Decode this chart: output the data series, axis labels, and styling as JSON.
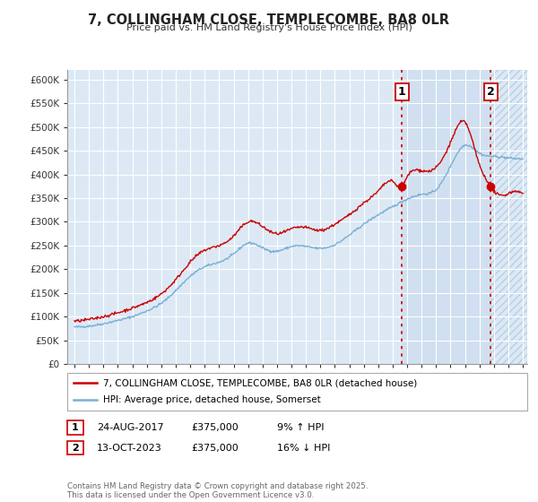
{
  "title": "7, COLLINGHAM CLOSE, TEMPLECOMBE, BA8 0LR",
  "subtitle": "Price paid vs. HM Land Registry's House Price Index (HPI)",
  "ylabel_ticks": [
    "£0",
    "£50K",
    "£100K",
    "£150K",
    "£200K",
    "£250K",
    "£300K",
    "£350K",
    "£400K",
    "£450K",
    "£500K",
    "£550K",
    "£600K"
  ],
  "ytick_values": [
    0,
    50000,
    100000,
    150000,
    200000,
    250000,
    300000,
    350000,
    400000,
    450000,
    500000,
    550000,
    600000
  ],
  "ylim": [
    0,
    620000
  ],
  "xlim_start": 1994.5,
  "xlim_end": 2026.3,
  "bg_color": "#dce9f5",
  "line_color_red": "#cc0000",
  "line_color_blue": "#7ab0d4",
  "grid_color": "#ffffff",
  "sale1_x": 2017.645,
  "sale1_y": 375000,
  "sale1_label": "1",
  "sale2_x": 2023.787,
  "sale2_y": 375000,
  "sale2_label": "2",
  "vline_color": "#cc0000",
  "legend_line1": "7, COLLINGHAM CLOSE, TEMPLECOMBE, BA8 0LR (detached house)",
  "legend_line2": "HPI: Average price, detached house, Somerset",
  "annotation1_date": "24-AUG-2017",
  "annotation1_price": "£375,000",
  "annotation1_hpi": "9% ↑ HPI",
  "annotation2_date": "13-OCT-2023",
  "annotation2_price": "£375,000",
  "annotation2_hpi": "16% ↓ HPI",
  "footer": "Contains HM Land Registry data © Crown copyright and database right 2025.\nThis data is licensed under the Open Government Licence v3.0.",
  "hpi_pts_x": [
    1995,
    1996,
    1997,
    1998,
    1999,
    2000,
    2001,
    2002,
    2003,
    2004,
    2005,
    2006,
    2007,
    2008,
    2009,
    2010,
    2011,
    2012,
    2013,
    2014,
    2015,
    2016,
    2017,
    2018,
    2019,
    2020,
    2021,
    2022,
    2023,
    2024,
    2025,
    2026
  ],
  "hpi_pts_y": [
    78000,
    80000,
    85000,
    92000,
    100000,
    112000,
    128000,
    155000,
    185000,
    205000,
    215000,
    232000,
    255000,
    245000,
    238000,
    248000,
    248000,
    244000,
    252000,
    272000,
    295000,
    315000,
    332000,
    348000,
    358000,
    368000,
    418000,
    462000,
    445000,
    438000,
    435000,
    433000
  ],
  "prop_pts_x": [
    1995,
    1996,
    1997,
    1998,
    1999,
    2000,
    2001,
    2002,
    2003,
    2004,
    2005,
    2006,
    2007,
    2008,
    2009,
    2010,
    2011,
    2012,
    2013,
    2014,
    2015,
    2016,
    2017,
    2017.645,
    2018,
    2019,
    2020,
    2021,
    2022,
    2023,
    2023.787,
    2024,
    2025,
    2026
  ],
  "prop_pts_y": [
    90000,
    94000,
    100000,
    108000,
    118000,
    130000,
    148000,
    178000,
    215000,
    240000,
    250000,
    270000,
    300000,
    290000,
    275000,
    285000,
    288000,
    282000,
    295000,
    315000,
    340000,
    365000,
    385000,
    375000,
    395000,
    408000,
    415000,
    468000,
    510000,
    420000,
    375000,
    365000,
    360000,
    358000
  ]
}
